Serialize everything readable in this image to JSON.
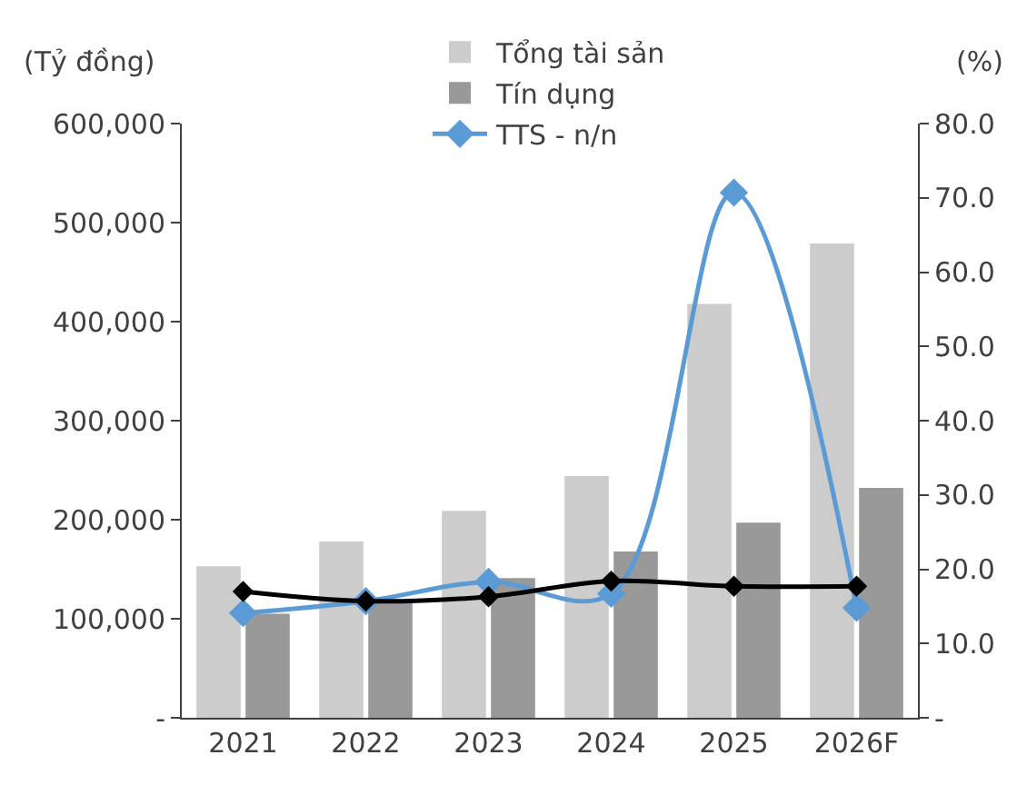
{
  "chart_data": {
    "type": "bar",
    "ylabel": "(Tỷ đồng)",
    "y2label": "(%)",
    "categories": [
      "2021",
      "2022",
      "2023",
      "2024",
      "2025",
      "2026F"
    ],
    "series": [
      {
        "name": "Tổng tài sản",
        "color": "#cccccc",
        "values": [
          153000,
          178000,
          209000,
          244000,
          418000,
          479000
        ]
      },
      {
        "name": "Tín dụng",
        "color": "#999999",
        "values": [
          105000,
          118000,
          141000,
          168000,
          197000,
          232000
        ]
      },
      {
        "name": "TTS - n/n",
        "type": "line",
        "axis": "y2",
        "color": "#5b9bd5",
        "marker": "diamond",
        "values": [
          14.1,
          15.7,
          18.3,
          16.7,
          70.7,
          14.8
        ]
      },
      {
        "type": "line",
        "axis": "y2",
        "color": "#000000",
        "marker": "diamond",
        "values": [
          17.0,
          15.7,
          16.3,
          18.4,
          17.7,
          17.7
        ]
      }
    ],
    "ylim": [
      0,
      600000
    ],
    "yticks": [
      {
        "value": 0,
        "label": "-"
      },
      {
        "value": 100000,
        "label": "100,000"
      },
      {
        "value": 200000,
        "label": "200,000"
      },
      {
        "value": 300000,
        "label": "300,000"
      },
      {
        "value": 400000,
        "label": "400,000"
      },
      {
        "value": 500000,
        "label": "500,000"
      },
      {
        "value": 600000,
        "label": "600,000"
      }
    ],
    "y2lim": [
      0,
      80
    ],
    "y2ticks": [
      {
        "value": 0,
        "label": "-"
      },
      {
        "value": 10,
        "label": "10.0"
      },
      {
        "value": 20,
        "label": "20.0"
      },
      {
        "value": 30,
        "label": "30.0"
      },
      {
        "value": 40,
        "label": "40.0"
      },
      {
        "value": 50,
        "label": "50.0"
      },
      {
        "value": 60,
        "label": "60.0"
      },
      {
        "value": 70,
        "label": "70.0"
      },
      {
        "value": 80,
        "label": "80.0"
      }
    ],
    "grid": false,
    "legend": "top"
  }
}
